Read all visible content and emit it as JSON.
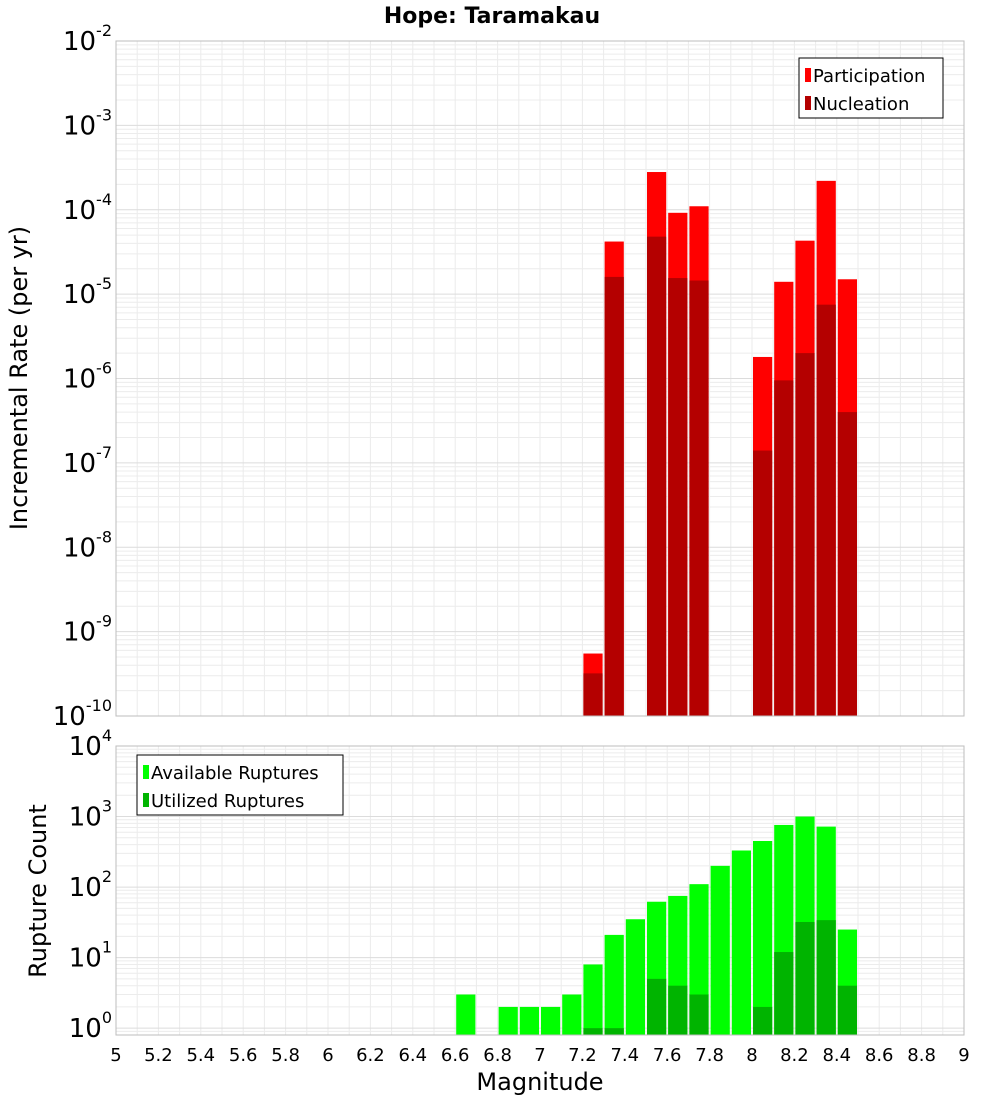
{
  "chart_data": [
    {
      "type": "bar",
      "title": "Hope: Taramakau",
      "xlabel": "Magnitude",
      "ylabel": "Incremental Rate (per yr)",
      "xlim": [
        5,
        9
      ],
      "ylim": [
        1e-10,
        0.01
      ],
      "yscale": "log",
      "grid": true,
      "legend_position": "top-right",
      "yticks": [
        {
          "base": "10",
          "exp": "-10"
        },
        {
          "base": "10",
          "exp": "-9"
        },
        {
          "base": "10",
          "exp": "-8"
        },
        {
          "base": "10",
          "exp": "-7"
        },
        {
          "base": "10",
          "exp": "-6"
        },
        {
          "base": "10",
          "exp": "-5"
        },
        {
          "base": "10",
          "exp": "-4"
        },
        {
          "base": "10",
          "exp": "-3"
        },
        {
          "base": "10",
          "exp": "-2"
        }
      ],
      "x": [
        7.25,
        7.35,
        7.55,
        7.65,
        7.75,
        8.05,
        8.15,
        8.25,
        8.35,
        8.45
      ],
      "series": [
        {
          "name": "Participation",
          "color": "#ff0000",
          "values": [
            5.5e-10,
            4.2e-05,
            0.00028,
            9.2e-05,
            0.00011,
            1.8e-06,
            1.4e-05,
            4.3e-05,
            0.00022,
            1.5e-05
          ]
        },
        {
          "name": "Nucleation",
          "color": "#b40000",
          "values": [
            3.2e-10,
            1.6e-05,
            4.8e-05,
            1.55e-05,
            1.45e-05,
            1.4e-07,
            9.5e-07,
            2e-06,
            7.5e-06,
            4e-07
          ]
        }
      ]
    },
    {
      "type": "bar",
      "xlabel": "Magnitude",
      "ylabel": "Rupture Count",
      "xlim": [
        5,
        9
      ],
      "ylim": [
        0.8,
        10000
      ],
      "yscale": "log",
      "grid": true,
      "legend_position": "top-left",
      "xticks": [
        "5",
        "5.2",
        "5.4",
        "5.6",
        "5.8",
        "6",
        "6.2",
        "6.4",
        "6.6",
        "6.8",
        "7",
        "7.2",
        "7.4",
        "7.6",
        "7.8",
        "8",
        "8.2",
        "8.4",
        "8.6",
        "8.8",
        "9"
      ],
      "yticks": [
        {
          "base": "10",
          "exp": "0"
        },
        {
          "base": "10",
          "exp": "1"
        },
        {
          "base": "10",
          "exp": "2"
        },
        {
          "base": "10",
          "exp": "3"
        },
        {
          "base": "10",
          "exp": "4"
        }
      ],
      "x": [
        6.65,
        6.85,
        6.95,
        7.05,
        7.15,
        7.25,
        7.35,
        7.45,
        7.55,
        7.65,
        7.75,
        7.85,
        7.95,
        8.05,
        8.15,
        8.25,
        8.35,
        8.45
      ],
      "series": [
        {
          "name": "Available Ruptures",
          "color": "#00ff00",
          "values": [
            3,
            2,
            2,
            2,
            3,
            8,
            21,
            35,
            62,
            75,
            110,
            200,
            330,
            450,
            760,
            1000,
            720,
            25
          ]
        },
        {
          "name": "Utilized Ruptures",
          "color": "#00b400",
          "values": [
            0,
            0,
            0,
            0,
            0,
            1,
            1,
            0,
            5,
            4,
            3,
            0,
            0,
            2,
            12,
            32,
            34,
            4
          ]
        }
      ]
    }
  ]
}
